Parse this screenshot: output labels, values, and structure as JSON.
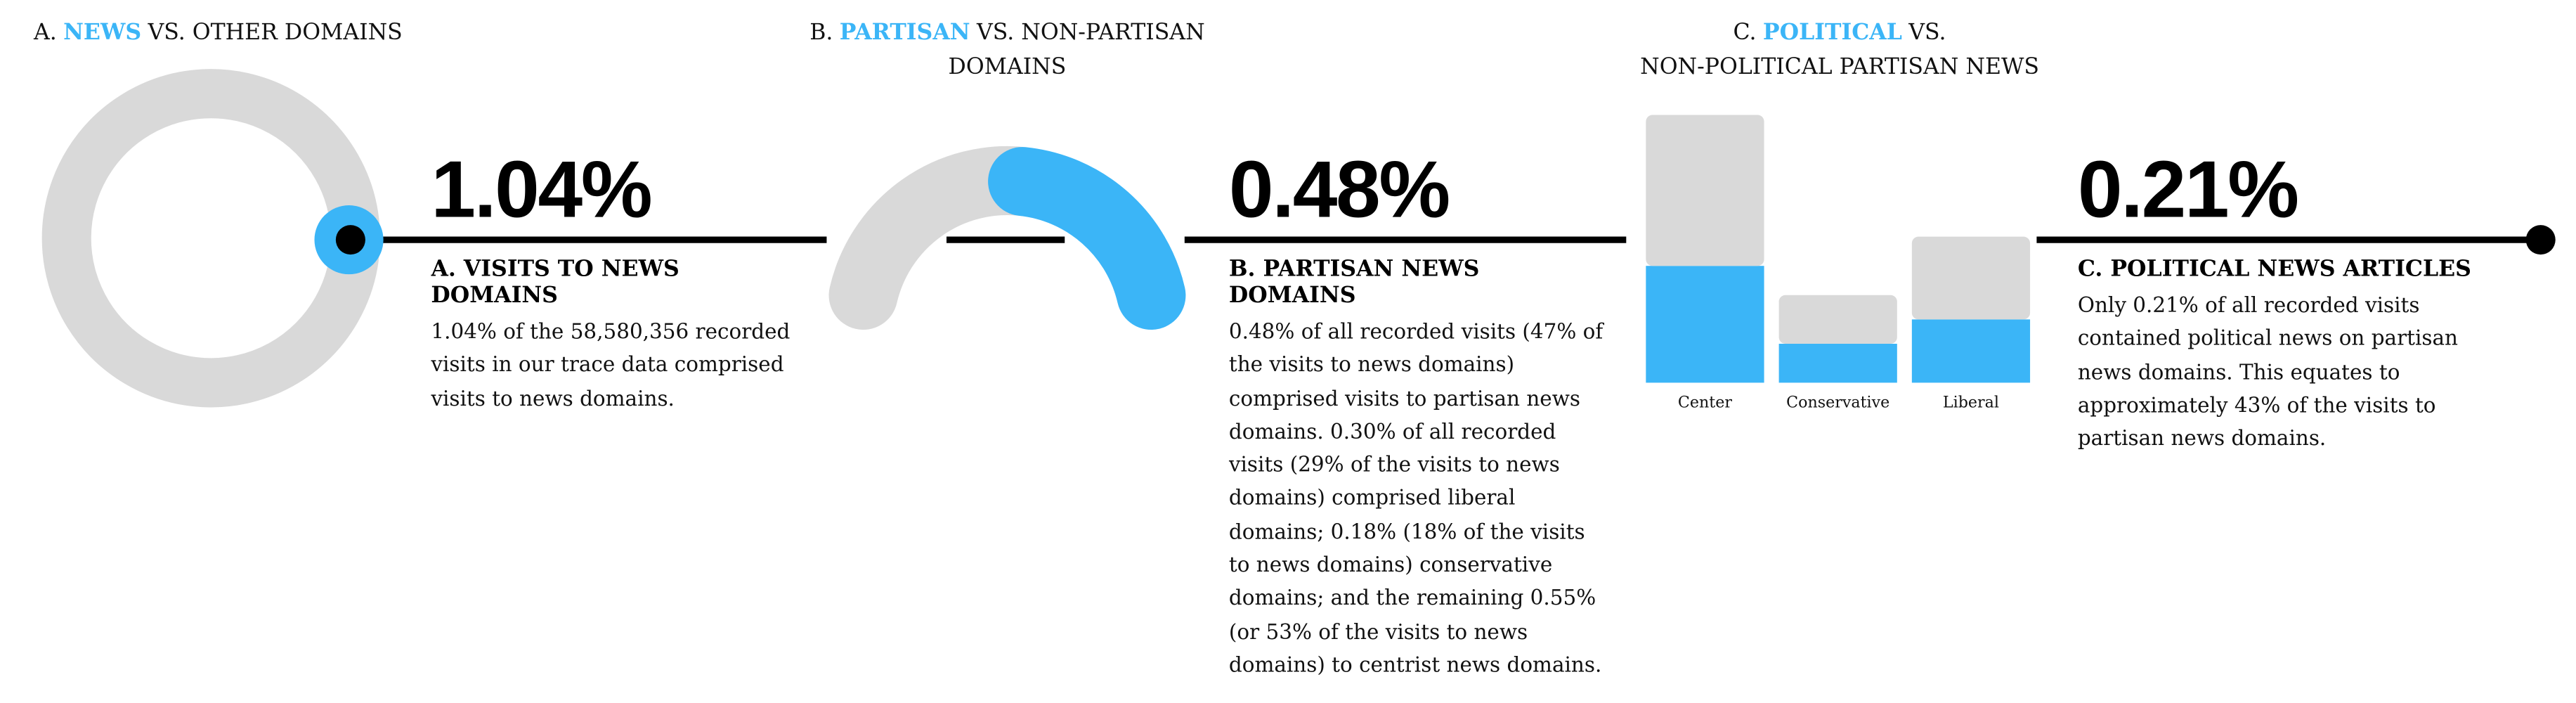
{
  "chart_data": [
    {
      "type": "donut",
      "title": [
        [
          "A.",
          "NEWS",
          "VS. OTHER DOMAINS"
        ]
      ],
      "values": [
        1.04,
        98.96
      ],
      "colors": [
        "#3bb5f7",
        "#d9d9d9"
      ]
    },
    {
      "type": "arc",
      "title": [
        [
          "B.",
          "PARTISAN",
          "VS. NON-PARTISAN"
        ],
        [
          "DOMAINS"
        ]
      ],
      "values": [
        0.56,
        0.48
      ],
      "colors": [
        "#d9d9d9",
        "#3bb5f7"
      ]
    },
    {
      "type": "bar",
      "title": [
        [
          "C.",
          "POLITICAL",
          "VS."
        ],
        [
          "NON-POLITICAL PARTISAN NEWS"
        ]
      ],
      "categories": [
        "Center",
        "Conservative",
        "Liberal"
      ],
      "stacked": true,
      "series": [
        {
          "color": "#3bb5f7",
          "values": [
            0.24,
            0.08,
            0.13
          ]
        },
        {
          "color": "#d9d9d9",
          "values": [
            0.31,
            0.1,
            0.17
          ]
        }
      ],
      "ylim": [
        0,
        0.55
      ]
    }
  ],
  "panels": [
    {
      "stat": "1.04%",
      "heading": "A. VISITS TO NEWS DOMAINS",
      "body": "1.04% of the 58,580,356 recorded visits in our trace data comprised visits to news domains."
    },
    {
      "stat": "0.48%",
      "heading": "B. PARTISAN NEWS DOMAINS",
      "body": "0.48% of all recorded visits (47% of the visits to news domains) comprised visits to partisan news domains. 0.30% of all recorded visits (29% of the visits to news domains) comprised liberal domains; 0.18% (18% of the visits to news domains) conservative domains; and the remaining 0.55% (or 53% of the visits to news domains) to centrist news domains."
    },
    {
      "stat": "0.21%",
      "heading": "C. POLITICAL NEWS ARTICLES",
      "body": "Only 0.21% of all recorded visits contained political news on partisan news domains. This equates to approximately 43% of the visits to partisan news domains."
    }
  ]
}
